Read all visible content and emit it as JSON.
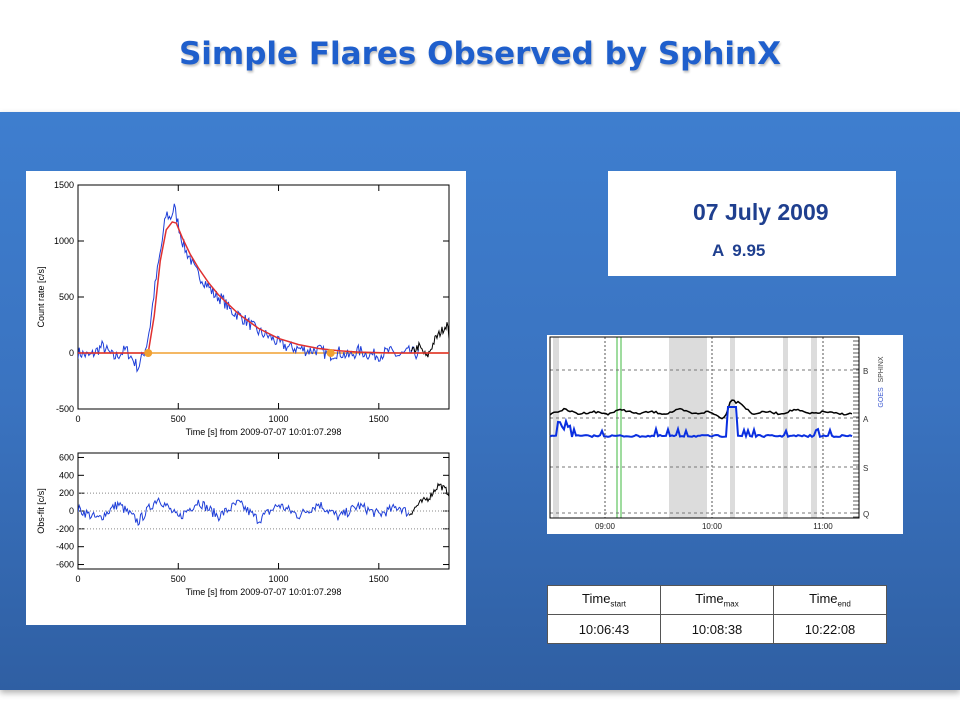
{
  "title": "Simple Flares Observed by SphinX",
  "date": "07 July 2009",
  "flare_class": {
    "letter": "A",
    "value": "9.95"
  },
  "times": {
    "headers": [
      {
        "base": "Time",
        "sub": "start"
      },
      {
        "base": "Time",
        "sub": "max"
      },
      {
        "base": "Time",
        "sub": "end"
      }
    ],
    "values": [
      "10:06:43",
      "10:08:38",
      "10:22:08"
    ]
  },
  "colors": {
    "title": "#1f5fcc",
    "data": "#1f3fd8",
    "fit": "#e03030",
    "background_line": "#f0a030",
    "panel": "#3a73c0"
  },
  "chart_data": [
    {
      "type": "line",
      "ylabel": "Count rate [c/s]",
      "xlabel": "Time [s] from 2009-07-07 10:01:07.298",
      "xlim": [
        0,
        1850
      ],
      "ylim": [
        -500,
        1500
      ],
      "xticks": [
        0,
        500,
        1000,
        1500
      ],
      "yticks": [
        -500,
        0,
        500,
        1000,
        1500
      ],
      "series": [
        {
          "values_x": [
            0,
            60,
            120,
            180,
            240,
            300,
            340,
            360,
            380,
            400,
            420,
            440,
            460,
            480,
            500,
            520,
            540,
            560,
            580,
            600,
            640,
            680,
            720,
            760,
            800,
            850,
            900,
            950,
            1000,
            1050,
            1100,
            1150,
            1200,
            1250,
            1300,
            1350,
            1400,
            1450,
            1500,
            1550,
            1600,
            1650,
            1700
          ],
          "values_y": [
            5,
            -30,
            60,
            -40,
            30,
            -130,
            60,
            250,
            550,
            780,
            1000,
            1250,
            1200,
            1300,
            1150,
            1000,
            900,
            850,
            750,
            700,
            620,
            520,
            480,
            380,
            340,
            270,
            190,
            150,
            90,
            50,
            40,
            20,
            30,
            -20,
            10,
            -30,
            20,
            -10,
            -20,
            15,
            -25,
            10,
            -10
          ]
        },
        {
          "values_x": [
            0,
            350,
            380,
            410,
            440,
            470,
            490,
            520,
            560,
            600,
            650,
            700,
            800,
            900,
            1000,
            1100,
            1200,
            1300,
            1400,
            1500,
            1600,
            1700,
            1850
          ],
          "values_y": [
            0,
            0,
            330,
            820,
            1100,
            1170,
            1160,
            1030,
            880,
            760,
            630,
            520,
            350,
            220,
            130,
            75,
            40,
            20,
            8,
            3,
            0,
            0,
            0
          ]
        },
        {
          "values_x": [
            0,
            350,
            1850
          ],
          "values_y": [
            0,
            0,
            0
          ]
        },
        {
          "values_x": [
            1660,
            1700,
            1740,
            1780,
            1810,
            1840,
            1850
          ],
          "values_y": [
            0,
            60,
            -40,
            120,
            190,
            260,
            150
          ]
        }
      ],
      "markers": [
        {
          "x": 350,
          "y": 0
        },
        {
          "x": 1260,
          "y": 0
        }
      ]
    },
    {
      "type": "line",
      "ylabel": "Obs-fit [c/s]",
      "xlabel": "Time [s] from 2009-07-07 10:01:07.298",
      "xlim": [
        0,
        1850
      ],
      "ylim": [
        -650,
        650
      ],
      "xticks": [
        0,
        500,
        1000,
        1500
      ],
      "yticks": [
        -600,
        -400,
        -200,
        0,
        200,
        400,
        600
      ],
      "series": [
        {
          "values_x": [
            0,
            100,
            200,
            300,
            400,
            500,
            600,
            700,
            800,
            900,
            1000,
            1100,
            1200,
            1300,
            1400,
            1500,
            1600,
            1650
          ],
          "values_y": [
            20,
            -90,
            80,
            -120,
            150,
            -80,
            110,
            -60,
            90,
            -100,
            70,
            -50,
            80,
            -70,
            60,
            -40,
            50,
            -30
          ]
        },
        {
          "values_x": [
            1650,
            1700,
            1750,
            1800,
            1850
          ],
          "values_y": [
            -40,
            80,
            150,
            300,
            200
          ]
        }
      ]
    },
    {
      "type": "line",
      "ylabel_right": [
        "SPHINX",
        "GOES"
      ],
      "yticks_right": [
        "B",
        "A",
        "S",
        "Q"
      ],
      "xticks": [
        "09:00",
        "10:00",
        "11:00"
      ],
      "series": [
        {
          "name": "GOES",
          "values": [
            0.66,
            0.68,
            0.66,
            0.67,
            0.66,
            0.68,
            0.66,
            0.67,
            0.66,
            0.68,
            0.66,
            0.67,
            0.64,
            0.72,
            0.66,
            0.67,
            0.66,
            0.68,
            0.66,
            0.67,
            0.66,
            0.66
          ]
        },
        {
          "name": "SPHINX",
          "values": [
            0.96,
            0.96,
            0.97,
            0.95,
            0.96,
            0.97,
            0.96,
            0.95,
            0.96,
            0.97,
            0.96,
            0.95,
            0.96,
            0.7,
            0.96,
            0.95,
            0.96,
            0.97,
            0.96,
            0.95,
            0.96,
            0.96
          ]
        }
      ]
    }
  ]
}
